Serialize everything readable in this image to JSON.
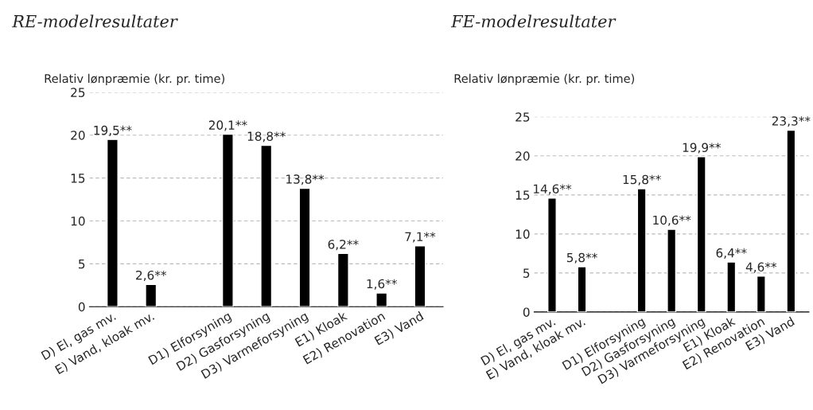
{
  "chart_data": [
    {
      "type": "bar",
      "title": "RE-modelresultater",
      "ylabel": "Relativ lønpræmie (kr. pr. time)",
      "categories": [
        "D) El, gas mv.",
        "E) Vand, kloak mv.",
        null,
        "D1) Elforsyning",
        "D2) Gasforsyning",
        "D3) Varmeforsyning",
        "E1) Kloak",
        "E2) Renovation",
        "E3) Vand"
      ],
      "values": [
        19.5,
        2.6,
        null,
        20.1,
        18.8,
        13.8,
        6.2,
        1.6,
        7.1
      ],
      "value_labels": [
        "19,5**",
        "2,6**",
        null,
        "20,1**",
        "18,8**",
        "13,8**",
        "6,2**",
        "1,6**",
        "7,1**"
      ],
      "color": "#000000",
      "ylim": [
        0,
        25
      ],
      "yticks": [
        0,
        5,
        10,
        15,
        20,
        25
      ],
      "grid": "y",
      "legend": false
    },
    {
      "type": "bar",
      "title": "FE-modelresultater",
      "ylabel": "Relativ lønpræmie (kr. pr. time)",
      "categories": [
        "D) El, gas mv.",
        "E) Vand, kloak mv.",
        null,
        "D1) Elforsyning",
        "D2) Gasforsyning",
        "D3) Varmeforsyning",
        "E1) Kloak",
        "E2) Renovation",
        "E3) Vand"
      ],
      "values": [
        14.6,
        5.8,
        null,
        15.8,
        10.6,
        19.9,
        6.4,
        4.6,
        23.3
      ],
      "value_labels": [
        "14,6**",
        "5,8**",
        null,
        "15,8**",
        "10,6**",
        "19,9**",
        "6,4**",
        "4,6**",
        "23,3**"
      ],
      "color": "#000000",
      "ylim": [
        0,
        25
      ],
      "yticks": [
        0,
        5,
        10,
        15,
        20,
        25
      ],
      "grid": "y",
      "legend": false
    }
  ]
}
